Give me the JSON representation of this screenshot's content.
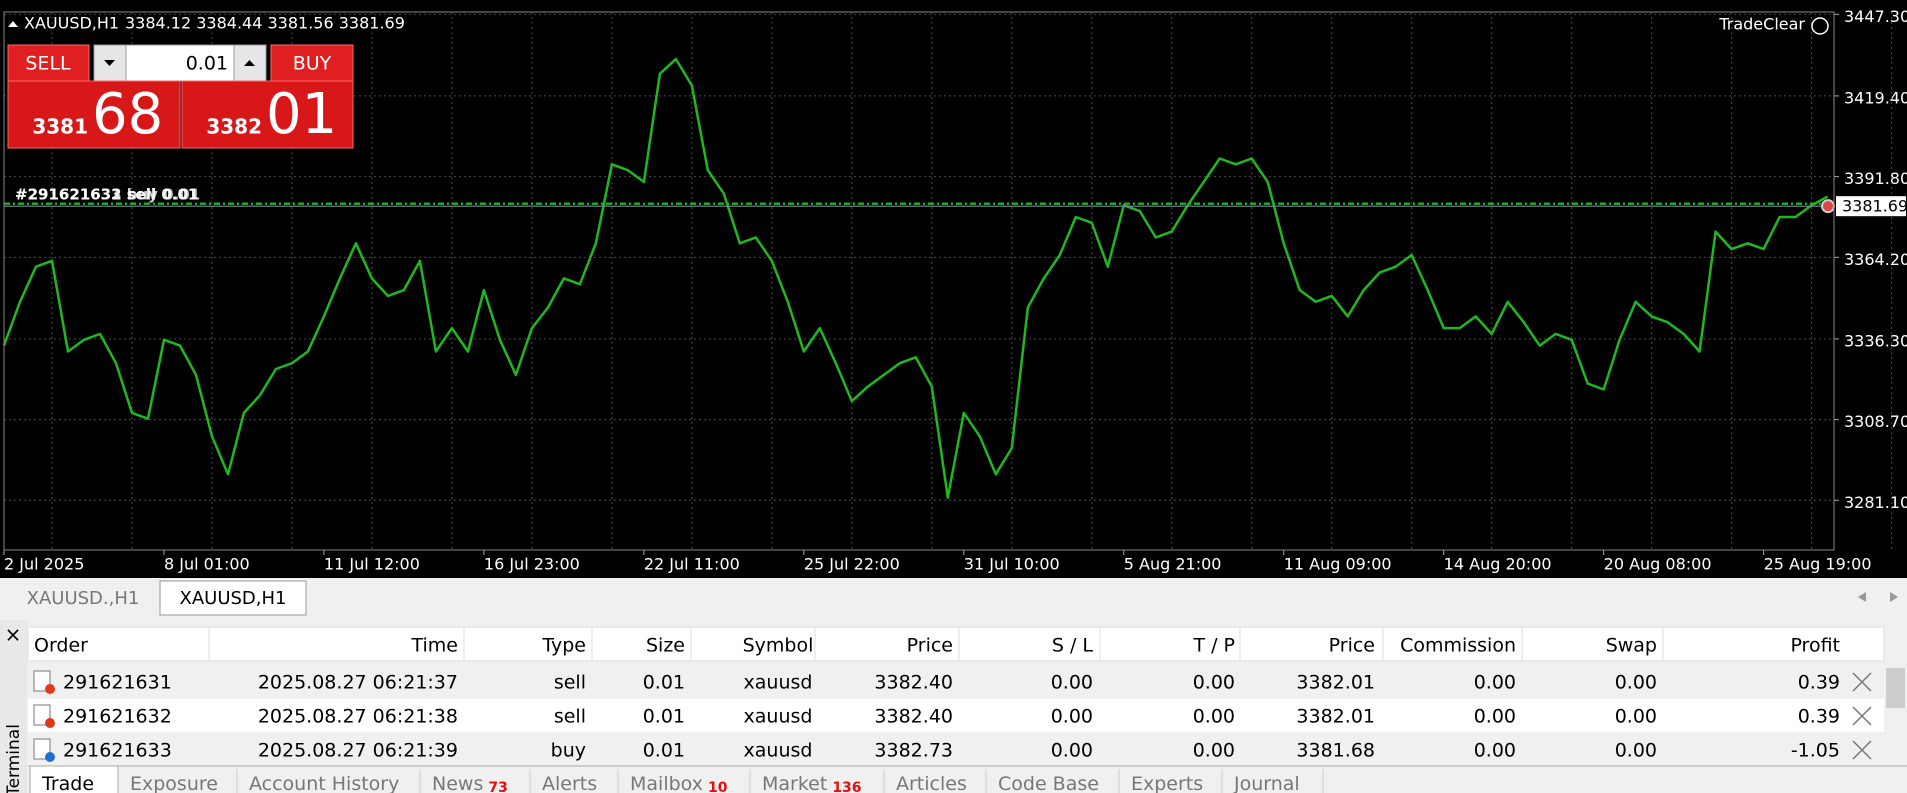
{
  "chart_header": {
    "symbol": "XAUUSD,H1",
    "ohlc": "3384.12 3384.44 3381.56 3381.69"
  },
  "trade_panel": {
    "sell": "SELL",
    "buy": "BUY",
    "lot": "0.01",
    "bid_major": "3381",
    "bid_minor": "68",
    "ask_major": "3382",
    "ask_minor": "01"
  },
  "brand": "TradeClear",
  "order_labels": [
    "#291621631 sell 0.01",
    "#291621632 sell 0.01",
    "#291621633 buy 0.01"
  ],
  "chart_data": {
    "type": "line",
    "color": "#1fb81f",
    "grid": true,
    "values": [
      3334,
      3349,
      3361,
      3363,
      3332,
      3336,
      3338,
      3328,
      3311,
      3309,
      3336,
      3334,
      3324,
      3303,
      3290,
      3311,
      3317,
      3326,
      3328,
      3332,
      3344,
      3357,
      3369,
      3357,
      3351,
      3353,
      3363,
      3332,
      3340,
      3332,
      3353,
      3336,
      3324,
      3340,
      3347,
      3357,
      3355,
      3369,
      3396,
      3394,
      3390,
      3427,
      3432,
      3423,
      3394,
      3386,
      3369,
      3371,
      3363,
      3349,
      3332,
      3340,
      3328,
      3315,
      3320,
      3324,
      3328,
      3330,
      3320,
      3282,
      3311,
      3303,
      3290,
      3299,
      3347,
      3357,
      3365,
      3378,
      3376,
      3361,
      3382,
      3380,
      3371,
      3373,
      3382,
      3390,
      3398,
      3396,
      3398,
      3390,
      3369,
      3353,
      3349,
      3351,
      3344,
      3353,
      3359,
      3361,
      3365,
      3353,
      3340,
      3340,
      3344,
      3338,
      3349,
      3342,
      3334,
      3338,
      3336,
      3321,
      3319,
      3336,
      3349,
      3344,
      3342,
      3338,
      3332,
      3373,
      3367,
      3369,
      3367,
      3378,
      3378,
      3382,
      3385
    ],
    "xlim": [
      0,
      114.4
    ],
    "xticks": [
      {
        "value": 0,
        "label": "2 Jul 2025"
      },
      {
        "value": 10,
        "label": "8 Jul 01:00"
      },
      {
        "value": 20,
        "label": "11 Jul 12:00"
      },
      {
        "value": 30,
        "label": "16 Jul 23:00"
      },
      {
        "value": 40,
        "label": "22 Jul 11:00"
      },
      {
        "value": 50,
        "label": "25 Jul 22:00"
      },
      {
        "value": 60,
        "label": "31 Jul 10:00"
      },
      {
        "value": 70,
        "label": "5 Aug 21:00"
      },
      {
        "value": 80,
        "label": "11 Aug 09:00"
      },
      {
        "value": 90,
        "label": "14 Aug 20:00"
      },
      {
        "value": 100,
        "label": "20 Aug 08:00"
      },
      {
        "value": 110,
        "label": "25 Aug 19:00"
      }
    ],
    "ylim": [
      3264.1,
      3448.1
    ],
    "yticks": [
      {
        "value": 3447.3,
        "label": "3447.30"
      },
      {
        "value": 3419.4,
        "label": "3419.40"
      },
      {
        "value": 3391.8,
        "label": "3391.80"
      },
      {
        "value": 3364.2,
        "label": "3364.20"
      },
      {
        "value": 3336.3,
        "label": "3336.30"
      },
      {
        "value": 3308.7,
        "label": "3308.70"
      },
      {
        "value": 3281.1,
        "label": "3281.10"
      }
    ],
    "current_price": {
      "value": 3381.69,
      "label": "3381.69"
    }
  },
  "chart_tabs": [
    "XAUUSD.,H1",
    "XAUUSD,H1"
  ],
  "terminal": {
    "title": "Terminal",
    "columns": [
      "Order",
      "Time",
      "Type",
      "Size",
      "Symbol",
      "Price",
      "S / L",
      "T / P",
      "Price",
      "Commission",
      "Swap",
      "Profit"
    ],
    "rows": [
      [
        "291621631",
        "2025.08.27 06:21:37",
        "sell",
        "0.01",
        "xauusd",
        "3382.40",
        "0.00",
        "0.00",
        "3382.01",
        "0.00",
        "0.00",
        "0.39"
      ],
      [
        "291621632",
        "2025.08.27 06:21:38",
        "sell",
        "0.01",
        "xauusd",
        "3382.40",
        "0.00",
        "0.00",
        "3382.01",
        "0.00",
        "0.00",
        "0.39"
      ],
      [
        "291621633",
        "2025.08.27 06:21:39",
        "buy",
        "0.01",
        "xauusd",
        "3382.73",
        "0.00",
        "0.00",
        "3381.68",
        "0.00",
        "0.00",
        "-1.05"
      ]
    ],
    "tabs": [
      {
        "name": "Trade"
      },
      {
        "name": "Exposure"
      },
      {
        "name": "Account History"
      },
      {
        "name": "News",
        "count": "73"
      },
      {
        "name": "Alerts"
      },
      {
        "name": "Mailbox",
        "count": "10"
      },
      {
        "name": "Market",
        "count": "136"
      },
      {
        "name": "Articles"
      },
      {
        "name": "Code Base"
      },
      {
        "name": "Experts"
      },
      {
        "name": "Journal"
      }
    ]
  }
}
